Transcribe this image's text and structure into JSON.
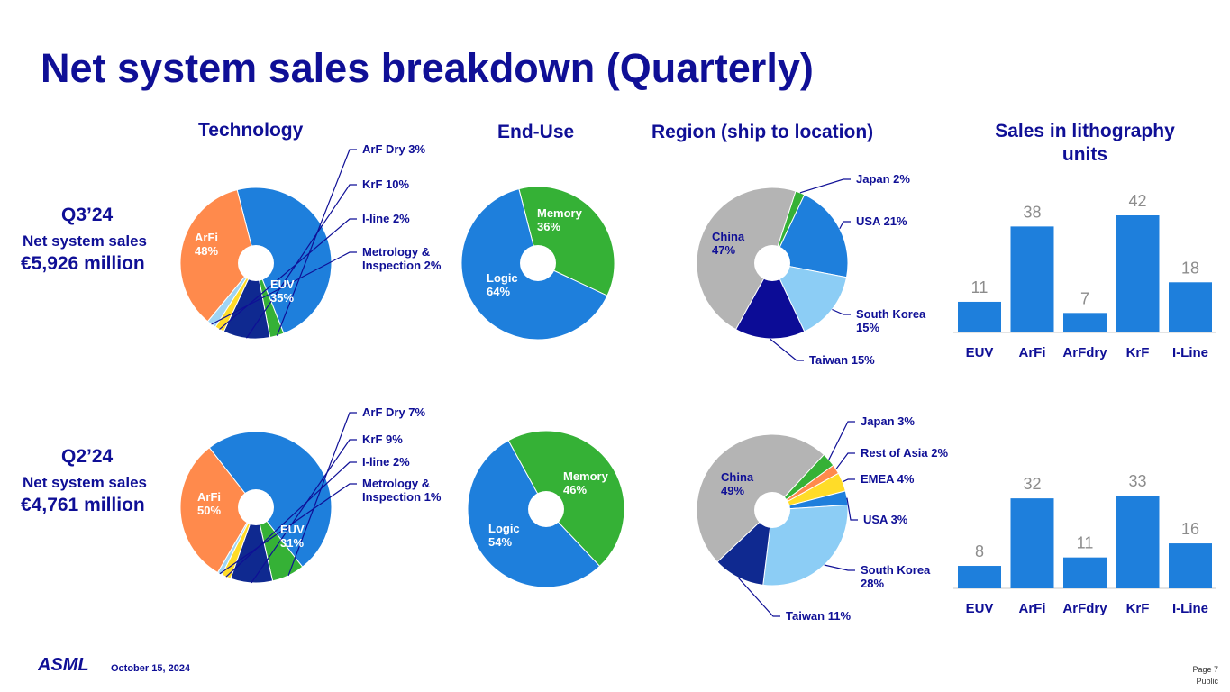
{
  "title": "Net system sales breakdown (Quarterly)",
  "headers": {
    "technology": "Technology",
    "end_use": "End-Use",
    "region": "Region (ship to location)",
    "units_line1": "Sales in lithography",
    "units_line2": "units"
  },
  "quarters": [
    {
      "label": "Q3’24",
      "sub": "Net system sales",
      "value": "€5,926 million"
    },
    {
      "label": "Q2’24",
      "sub": "Net system sales",
      "value": "€4,761 million"
    }
  ],
  "footer": {
    "date": "October 15, 2024",
    "page": "Page 7",
    "classification": "Public",
    "logo": "ASML"
  },
  "colors": {
    "blue": "#1e7fdc",
    "green": "#35b136",
    "navy": "#0f2990",
    "yellow": "#ffdc28",
    "lightblue": "#9fd4f3",
    "orange": "#ff8a4c",
    "gray": "#b4b4b4",
    "skyblue": "#8ccdf5",
    "darkblue": "#0c0c96",
    "text": "#0f0f96"
  },
  "chart_data": [
    {
      "type": "pie",
      "title": "Technology",
      "quarter": "Q3’24",
      "slices": [
        {
          "label": "ArFi",
          "value": 48,
          "text": "ArFi",
          "pct": "48%"
        },
        {
          "label": "ArF Dry",
          "value": 3,
          "text": "ArF Dry 3%"
        },
        {
          "label": "KrF",
          "value": 10,
          "text": "KrF 10%"
        },
        {
          "label": "I-line",
          "value": 2,
          "text": "I-line 2%"
        },
        {
          "label": "Metrology & Inspection",
          "value": 2,
          "text": "Metrology &",
          "text2": "Inspection 2%"
        },
        {
          "label": "EUV",
          "value": 35,
          "text": "EUV",
          "pct": "35%"
        }
      ]
    },
    {
      "type": "pie",
      "title": "End-Use",
      "quarter": "Q3’24",
      "slices": [
        {
          "label": "Memory",
          "value": 36,
          "text": "Memory",
          "pct": "36%"
        },
        {
          "label": "Logic",
          "value": 64,
          "text": "Logic",
          "pct": "64%"
        }
      ]
    },
    {
      "type": "pie",
      "title": "Region (ship to location)",
      "quarter": "Q3’24",
      "slices": [
        {
          "label": "Japan",
          "value": 2,
          "text": "Japan 2%"
        },
        {
          "label": "USA",
          "value": 21,
          "text": "USA 21%"
        },
        {
          "label": "South Korea",
          "value": 15,
          "text": "South Korea",
          "text2": "15%"
        },
        {
          "label": "Taiwan",
          "value": 15,
          "text": "Taiwan 15%"
        },
        {
          "label": "China",
          "value": 47,
          "text": "China",
          "pct": "47%"
        }
      ]
    },
    {
      "type": "bar",
      "title": "Sales in lithography units",
      "quarter": "Q3’24",
      "categories": [
        "EUV",
        "ArFi",
        "ArFdry",
        "KrF",
        "I-Line"
      ],
      "values": [
        11,
        38,
        7,
        42,
        18
      ]
    },
    {
      "type": "pie",
      "title": "Technology",
      "quarter": "Q2’24",
      "slices": [
        {
          "label": "ArFi",
          "value": 50,
          "text": "ArFi",
          "pct": "50%"
        },
        {
          "label": "ArF Dry",
          "value": 7,
          "text": "ArF Dry 7%"
        },
        {
          "label": "KrF",
          "value": 9,
          "text": "KrF 9%"
        },
        {
          "label": "I-line",
          "value": 2,
          "text": "I-line 2%"
        },
        {
          "label": "Metrology & Inspection",
          "value": 1,
          "text": "Metrology &",
          "text2": "Inspection 1%"
        },
        {
          "label": "EUV",
          "value": 31,
          "text": "EUV",
          "pct": "31%"
        }
      ]
    },
    {
      "type": "pie",
      "title": "End-Use",
      "quarter": "Q2’24",
      "slices": [
        {
          "label": "Memory",
          "value": 46,
          "text": "Memory",
          "pct": "46%"
        },
        {
          "label": "Logic",
          "value": 54,
          "text": "Logic",
          "pct": "54%"
        }
      ]
    },
    {
      "type": "pie",
      "title": "Region (ship to location)",
      "quarter": "Q2’24",
      "slices": [
        {
          "label": "Japan",
          "value": 3,
          "text": "Japan 3%"
        },
        {
          "label": "Rest of Asia",
          "value": 2,
          "text": "Rest of Asia 2%"
        },
        {
          "label": "EMEA",
          "value": 4,
          "text": "EMEA 4%"
        },
        {
          "label": "USA",
          "value": 3,
          "text": "USA 3%"
        },
        {
          "label": "South Korea",
          "value": 28,
          "text": "South Korea",
          "text2": "28%"
        },
        {
          "label": "Taiwan",
          "value": 11,
          "text": "Taiwan 11%"
        },
        {
          "label": "China",
          "value": 49,
          "text": "China",
          "pct": "49%"
        }
      ]
    },
    {
      "type": "bar",
      "title": "Sales in lithography units",
      "quarter": "Q2’24",
      "categories": [
        "EUV",
        "ArFi",
        "ArFdry",
        "KrF",
        "I-Line"
      ],
      "values": [
        8,
        32,
        11,
        33,
        16
      ]
    }
  ]
}
